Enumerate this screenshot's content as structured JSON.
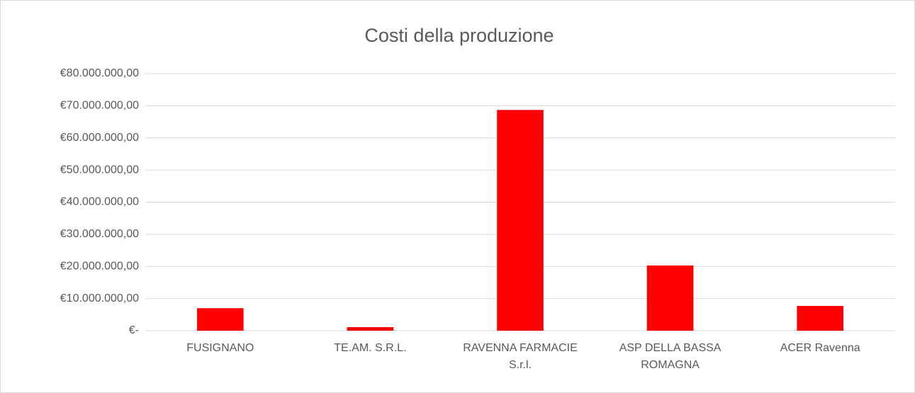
{
  "chart_data": {
    "type": "bar",
    "title": "Costi della produzione",
    "categories": [
      "FUSIGNANO",
      "TE.AM. S.R.L.",
      "RAVENNA FARMACIE S.r.l.",
      "ASP DELLA BASSA ROMAGNA",
      "ACER Ravenna"
    ],
    "values": [
      7000000,
      1100000,
      68700000,
      20300000,
      7700000
    ],
    "color": "#ff0000",
    "ylim": [
      0,
      80000000
    ],
    "yticks": [
      {
        "value": 0,
        "label": "€-"
      },
      {
        "value": 10000000,
        "label": "€10.000.000,00"
      },
      {
        "value": 20000000,
        "label": "€20.000.000,00"
      },
      {
        "value": 30000000,
        "label": "€30.000.000,00"
      },
      {
        "value": 40000000,
        "label": "€40.000.000,00"
      },
      {
        "value": 50000000,
        "label": "€50.000.000,00"
      },
      {
        "value": 60000000,
        "label": "€60.000.000,00"
      },
      {
        "value": 70000000,
        "label": "€70.000.000,00"
      },
      {
        "value": 80000000,
        "label": "€80.000.000,00"
      }
    ],
    "grid": true
  }
}
